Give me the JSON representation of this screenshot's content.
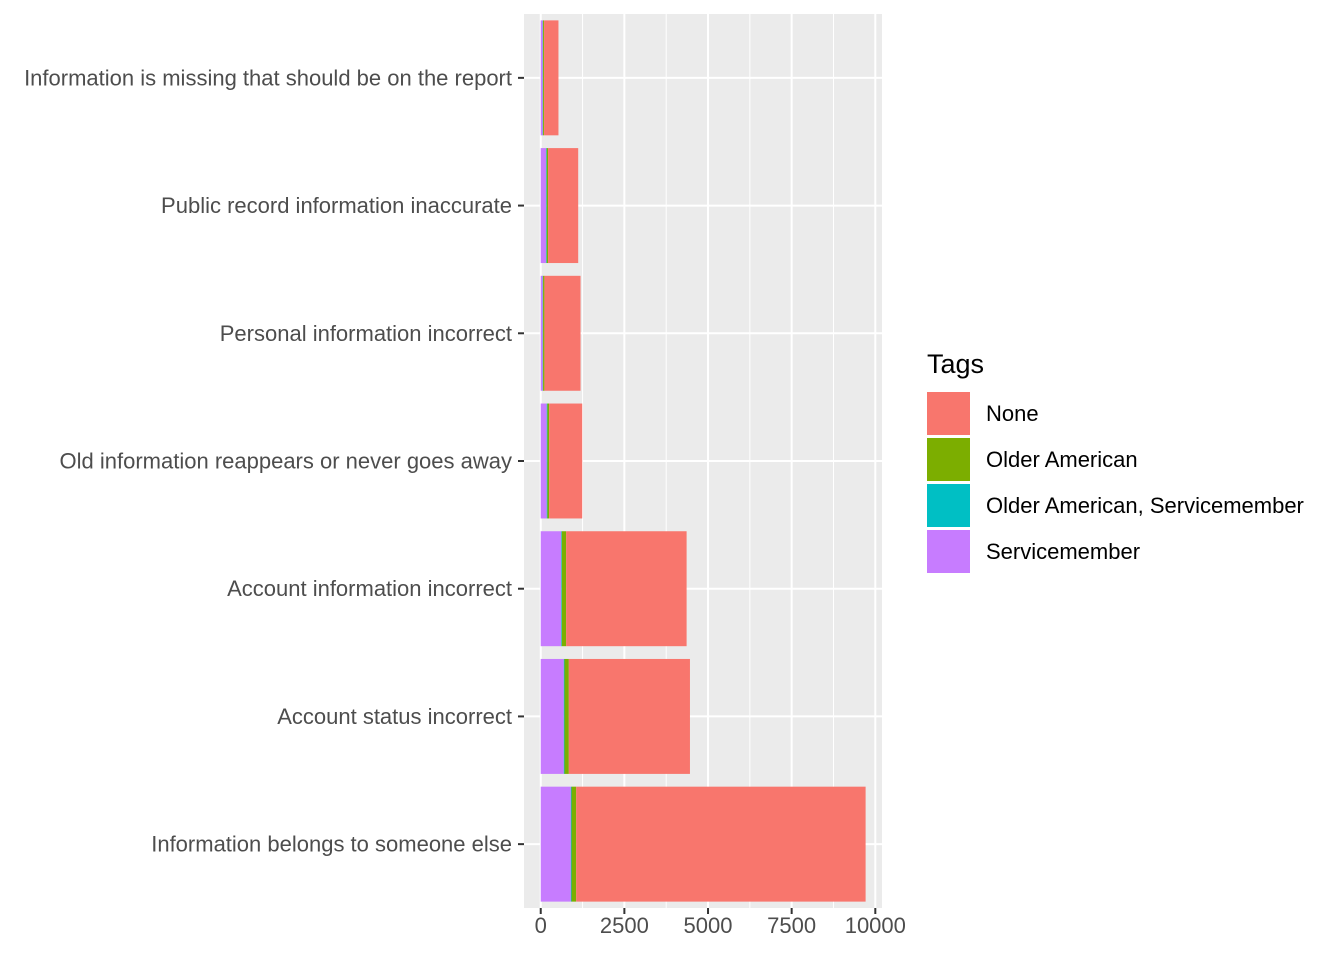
{
  "chart_data": {
    "type": "bar",
    "orientation": "horizontal",
    "stacked": true,
    "title": "",
    "xlabel": "",
    "ylabel": "",
    "categories": [
      "Information is missing that should be on the report",
      "Public record information inaccurate",
      "Personal information incorrect",
      "Old information reappears or never goes away",
      "Account information incorrect",
      "Account status incorrect",
      "Information belongs to someone else"
    ],
    "series": [
      {
        "name": "Servicemember",
        "color": "#C77CFF",
        "values": [
          60,
          160,
          60,
          180,
          610,
          690,
          900
        ]
      },
      {
        "name": "Older American, Servicemember",
        "color": "#00BFC4",
        "values": [
          10,
          20,
          10,
          20,
          20,
          20,
          20
        ]
      },
      {
        "name": "Older American",
        "color": "#7CAE00",
        "values": [
          30,
          40,
          40,
          50,
          130,
          130,
          140
        ]
      },
      {
        "name": "None",
        "color": "#F8766D",
        "values": [
          430,
          900,
          1080,
          990,
          3600,
          3620,
          8650
        ]
      }
    ],
    "xlim": [
      -500,
      10200
    ],
    "xticks": [
      0,
      2500,
      5000,
      7500,
      10000
    ],
    "grid": true,
    "legend": {
      "title": "Tags",
      "placement": "right",
      "items": [
        {
          "label": "None",
          "color": "#F8766D"
        },
        {
          "label": "Older American",
          "color": "#7CAE00"
        },
        {
          "label": "Older American, Servicemember",
          "color": "#00BFC4"
        },
        {
          "label": "Servicemember",
          "color": "#C77CFF"
        }
      ]
    }
  }
}
